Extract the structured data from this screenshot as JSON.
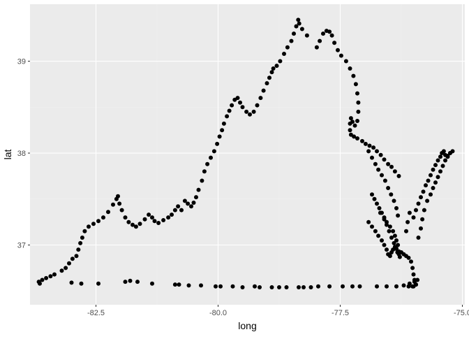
{
  "chart_data": {
    "type": "scatter",
    "title": "",
    "xlabel": "long",
    "ylabel": "lat",
    "xlim": [
      -83.85,
      -74.95
    ],
    "ylim": [
      36.35,
      39.62
    ],
    "x_ticks": [
      -82.5,
      -80.0,
      -77.5,
      -75.0
    ],
    "x_tick_labels": [
      "-82.5",
      "-80.0",
      "-77.5",
      "-75.0"
    ],
    "y_ticks": [
      37,
      38,
      39
    ],
    "y_tick_labels": [
      "37",
      "38",
      "39"
    ],
    "grid": true,
    "legend": "none",
    "panel_color": "#ebebeb",
    "point_color": "#000000",
    "series": [
      {
        "x": [
          -83.67,
          -83.6,
          -83.52,
          -83.43,
          -83.35,
          -83.2,
          -83.12,
          -83.05,
          -82.98,
          -82.9,
          -82.86,
          -82.82,
          -82.78,
          -82.73,
          -82.65,
          -82.55,
          -82.45,
          -82.35,
          -82.25,
          -82.15,
          -82.08,
          -82.05,
          -82.02,
          -81.97,
          -81.9,
          -81.83,
          -81.75,
          -81.68,
          -81.6,
          -81.5,
          -81.42,
          -81.35,
          -81.3,
          -81.22,
          -81.12,
          -81.02,
          -80.95,
          -80.88,
          -80.82,
          -80.75,
          -80.68,
          -80.62,
          -80.55,
          -80.5,
          -80.45,
          -80.4,
          -80.33,
          -80.28,
          -80.22,
          -80.15,
          -80.08,
          -80.02,
          -79.97,
          -79.92,
          -79.88,
          -79.82,
          -79.77,
          -79.72,
          -79.66,
          -79.6,
          -79.55,
          -79.5,
          -79.42,
          -79.35,
          -79.27,
          -79.2,
          -79.13,
          -79.07,
          -79.0,
          -78.95,
          -78.9,
          -78.87,
          -78.8,
          -78.73,
          -78.65,
          -78.58,
          -78.5,
          -78.45,
          -78.4,
          -78.36,
          -78.34,
          -78.28,
          -78.18,
          -77.98,
          -77.92,
          -77.85,
          -77.78,
          -77.72,
          -77.67,
          -77.62,
          -77.55,
          -77.48,
          -77.38,
          -77.3,
          -77.23,
          -77.18,
          -77.15,
          -77.13,
          -77.13,
          -77.15,
          -77.2,
          -77.25,
          -77.28,
          -77.3,
          -77.3,
          -77.28,
          -77.22,
          -77.15,
          -77.05,
          -76.98,
          -76.9,
          -76.82,
          -76.75,
          -76.67,
          -76.6,
          -76.52,
          -76.45,
          -76.38,
          -76.3,
          -76.92,
          -76.85,
          -76.78,
          -76.72,
          -76.65,
          -76.58,
          -76.52,
          -76.46,
          -76.4,
          -76.35,
          -76.32,
          -76.85,
          -76.8,
          -76.75,
          -76.7,
          -76.65,
          -76.6,
          -76.55,
          -76.48,
          -76.42,
          -76.38,
          -76.35,
          -76.32,
          -76.68,
          -76.6,
          -76.55,
          -76.5,
          -76.45,
          -76.4,
          -76.36,
          -76.33,
          -76.3,
          -76.28,
          -76.92,
          -76.85,
          -76.78,
          -76.72,
          -76.65,
          -76.6,
          -76.55,
          -76.52,
          -76.48,
          -76.45,
          -76.42,
          -76.38,
          -76.35,
          -76.3,
          -76.25,
          -76.2,
          -76.15,
          -76.1,
          -76.05,
          -76.02,
          -76.0,
          -75.98,
          -75.95,
          -75.98,
          -76.02,
          -76.08,
          -76.15,
          -76.12,
          -76.08,
          -76.0,
          -75.95,
          -75.9,
          -75.85,
          -75.8,
          -75.75,
          -75.7,
          -75.65,
          -75.6,
          -75.55,
          -75.5,
          -75.45,
          -75.42,
          -75.38,
          -75.35,
          -75.3,
          -75.25,
          -75.9,
          -75.85,
          -75.82,
          -75.78,
          -75.72,
          -75.65,
          -75.6,
          -75.55,
          -75.5,
          -75.45,
          -75.4,
          -75.35,
          -75.3,
          -75.25,
          -75.2,
          -83.65,
          -83.0,
          -82.8,
          -82.45,
          -81.9,
          -81.8,
          -81.65,
          -81.35,
          -80.88,
          -80.8,
          -80.6,
          -80.35,
          -80.05,
          -79.95,
          -79.7,
          -79.5,
          -79.25,
          -79.15,
          -78.9,
          -78.75,
          -78.6,
          -78.35,
          -78.25,
          -78.1,
          -77.95,
          -77.72,
          -77.45,
          -77.25,
          -77.1,
          -76.75,
          -76.55,
          -76.35,
          -76.2,
          -76.1,
          -76.0,
          -75.95,
          -75.92
        ],
        "y": [
          36.6,
          36.62,
          36.64,
          36.66,
          36.68,
          36.72,
          36.75,
          36.8,
          36.85,
          36.88,
          36.95,
          37.02,
          37.08,
          37.15,
          37.2,
          37.23,
          37.26,
          37.3,
          37.36,
          37.44,
          37.5,
          37.53,
          37.45,
          37.38,
          37.3,
          37.25,
          37.22,
          37.2,
          37.23,
          37.28,
          37.33,
          37.3,
          37.26,
          37.24,
          37.27,
          37.3,
          37.33,
          37.38,
          37.42,
          37.38,
          37.48,
          37.45,
          37.42,
          37.46,
          37.52,
          37.6,
          37.7,
          37.8,
          37.88,
          37.95,
          38.02,
          38.1,
          38.18,
          38.25,
          38.32,
          38.4,
          38.46,
          38.52,
          38.58,
          38.6,
          38.55,
          38.5,
          38.45,
          38.42,
          38.45,
          38.52,
          38.6,
          38.68,
          38.76,
          38.82,
          38.88,
          38.92,
          38.95,
          39.0,
          39.08,
          39.15,
          39.22,
          39.3,
          39.38,
          39.45,
          39.41,
          39.35,
          39.28,
          39.15,
          39.22,
          39.3,
          39.33,
          39.32,
          39.28,
          39.2,
          39.12,
          39.06,
          39.0,
          38.92,
          38.84,
          38.75,
          38.65,
          38.55,
          38.45,
          38.35,
          38.3,
          38.34,
          38.38,
          38.32,
          38.25,
          38.2,
          38.18,
          38.16,
          38.13,
          38.1,
          38.08,
          38.06,
          38.02,
          37.98,
          37.93,
          37.88,
          37.85,
          37.8,
          37.75,
          38.02,
          37.95,
          37.88,
          37.82,
          37.76,
          37.7,
          37.62,
          37.55,
          37.48,
          37.4,
          37.32,
          37.55,
          37.5,
          37.45,
          37.4,
          37.35,
          37.3,
          37.25,
          37.2,
          37.15,
          37.1,
          37.05,
          37.0,
          37.35,
          37.28,
          37.22,
          37.15,
          37.08,
          37.02,
          36.96,
          36.92,
          36.9,
          36.87,
          37.25,
          37.2,
          37.15,
          37.1,
          37.05,
          37.0,
          36.95,
          36.9,
          36.88,
          36.92,
          36.95,
          36.98,
          36.96,
          36.93,
          36.92,
          36.9,
          36.88,
          36.86,
          36.82,
          36.75,
          36.68,
          36.62,
          36.57,
          36.6,
          36.55,
          36.58,
          37.15,
          37.25,
          37.35,
          37.3,
          37.38,
          37.45,
          37.52,
          37.58,
          37.65,
          37.7,
          37.76,
          37.82,
          37.87,
          37.92,
          37.96,
          38.0,
          38.02,
          37.98,
          37.96,
          38.0,
          37.08,
          37.18,
          37.28,
          37.38,
          37.48,
          37.55,
          37.62,
          37.68,
          37.74,
          37.8,
          37.86,
          37.92,
          37.97,
          38.0,
          38.02,
          36.58,
          36.59,
          36.58,
          36.58,
          36.6,
          36.61,
          36.6,
          36.58,
          36.57,
          36.57,
          36.56,
          36.56,
          36.55,
          36.55,
          36.55,
          36.54,
          36.55,
          36.54,
          36.54,
          36.54,
          36.54,
          36.54,
          36.54,
          36.54,
          36.55,
          36.55,
          36.55,
          36.55,
          36.55,
          36.55,
          36.55,
          36.55,
          36.56,
          36.55,
          36.55,
          36.57,
          36.62
        ]
      }
    ]
  }
}
